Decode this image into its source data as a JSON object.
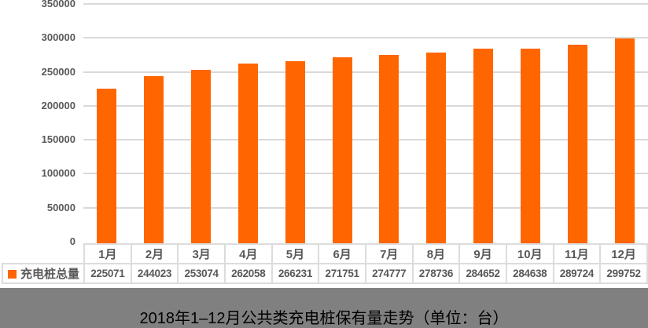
{
  "chart_data": {
    "type": "bar",
    "title": "2018年1–12月公共类充电桩保有量走势（单位：台）",
    "legend": "充电桩总量",
    "categories": [
      "1月",
      "2月",
      "3月",
      "4月",
      "5月",
      "6月",
      "7月",
      "8月",
      "9月",
      "10月",
      "11月",
      "12月"
    ],
    "values": [
      225071,
      244023,
      253074,
      262058,
      266231,
      271751,
      274777,
      278736,
      284652,
      284638,
      289724,
      299752
    ],
    "ylim": [
      0,
      350000
    ],
    "yticks": [
      0,
      50000,
      100000,
      150000,
      200000,
      250000,
      300000,
      350000
    ],
    "grid": true,
    "legend_position": "bottom-table-left",
    "colors": {
      "bar": "#FF6600",
      "grid": "#D9D9D9",
      "axis_text": "#595959",
      "table_border": "#DCDCDC",
      "table_text": "#595959",
      "title_text": "#000000",
      "band": "#808080",
      "background": "#FFFFFF"
    }
  }
}
